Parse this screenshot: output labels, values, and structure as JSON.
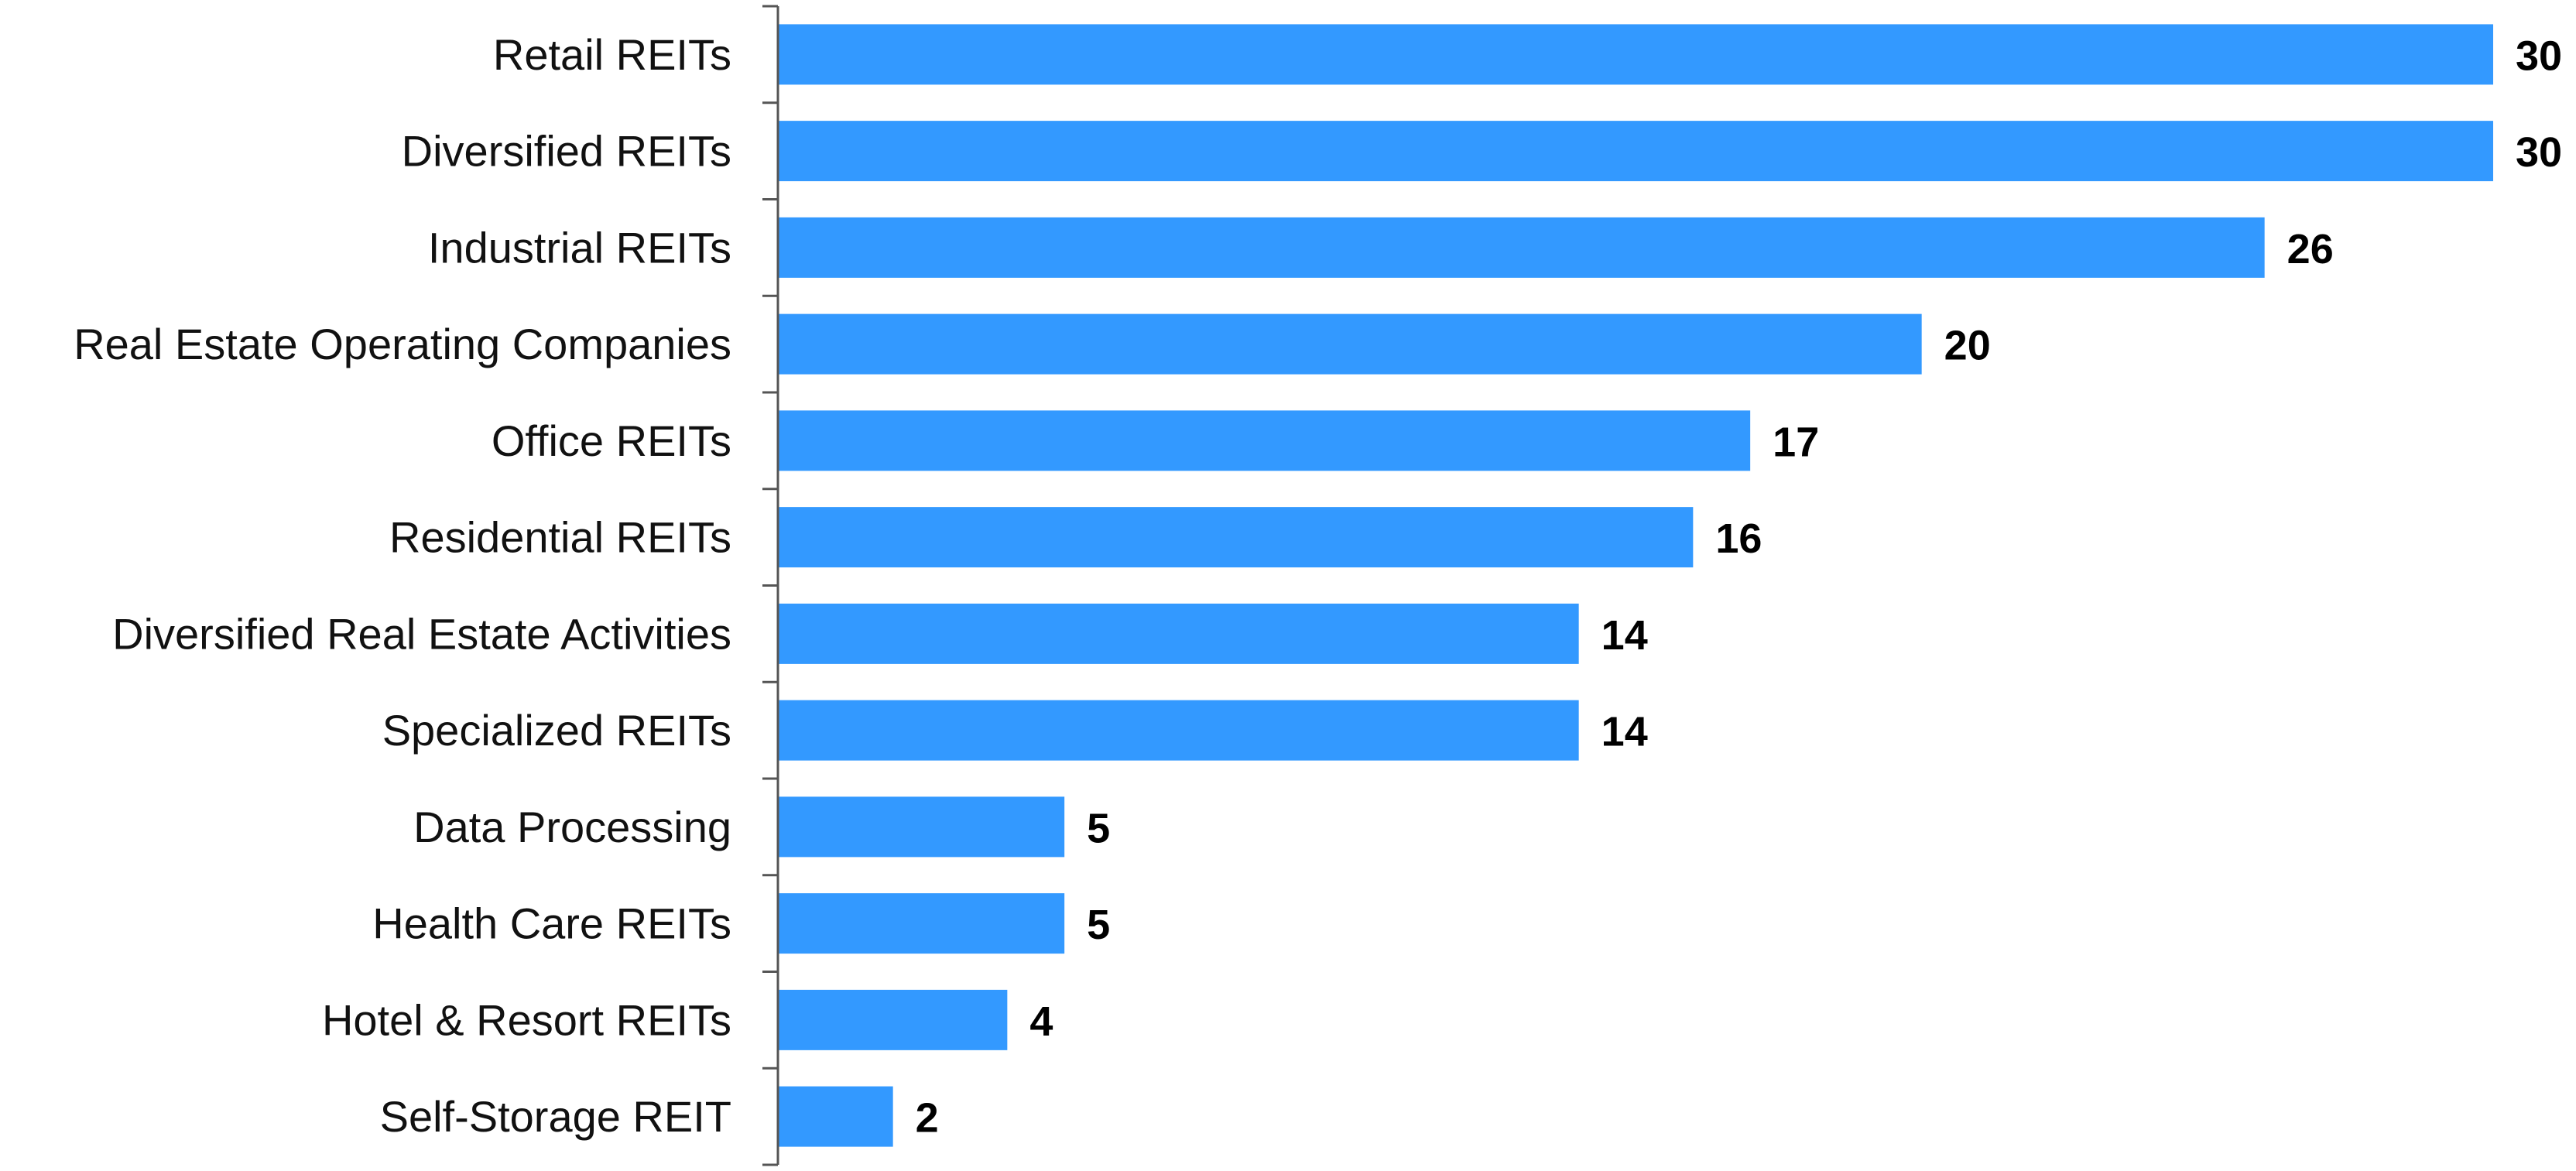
{
  "chart_data": {
    "type": "bar",
    "orientation": "horizontal",
    "categories": [
      "Retail REITs",
      "Diversified REITs",
      "Industrial REITs",
      "Real Estate Operating Companies",
      "Office REITs",
      "Residential REITs",
      "Diversified Real Estate Activities",
      "Specialized REITs",
      "Data Processing",
      "Health Care REITs",
      "Hotel & Resort REITs",
      "Self-Storage REIT"
    ],
    "values": [
      30,
      30,
      26,
      20,
      17,
      16,
      14,
      14,
      5,
      5,
      4,
      2
    ],
    "value_labels": [
      "30",
      "30",
      "26",
      "20",
      "17",
      "16",
      "14",
      "14",
      "5",
      "5",
      "4",
      "2"
    ],
    "title": "",
    "xlabel": "",
    "ylabel": "",
    "xlim": [
      0,
      30
    ],
    "grid": false,
    "legend": "none",
    "bar_color": "#3399FF"
  }
}
